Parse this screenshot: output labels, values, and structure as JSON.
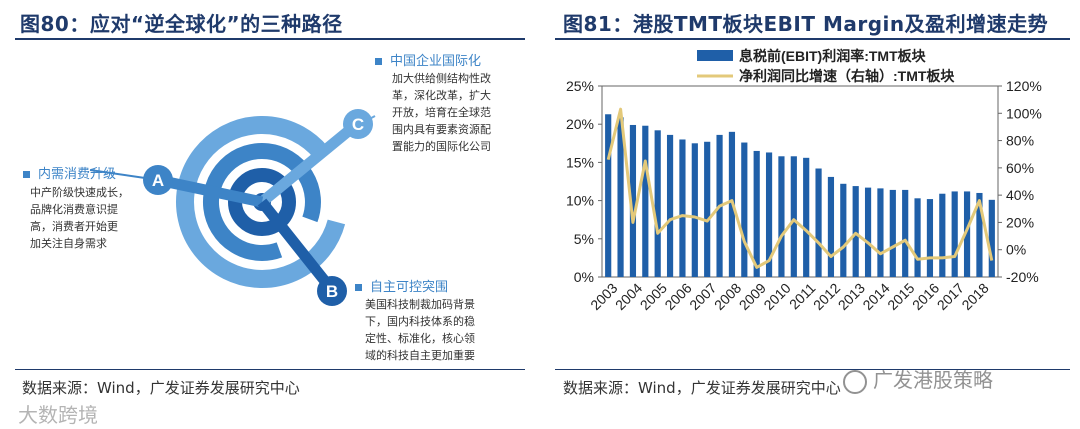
{
  "left": {
    "title": "图80：应对“逆全球化”的三种路径",
    "source": "数据来源：Wind，广发证券发展研究中心",
    "markers": [
      "A",
      "B",
      "C"
    ],
    "paths": [
      {
        "title": "中国企业国际化",
        "body": "加大供给侧结构性改\n革，深化改革，扩大\n开放，培育在全球范\n围内具有要素资源配\n置能力的国际化公司"
      },
      {
        "title": "内需消费升级",
        "body": "中产阶级快速成长，\n品牌化消费意识提\n高，消费者开始更\n加关注自身需求"
      },
      {
        "title": "自主可控突围",
        "body": "美国科技制裁加码背景\n下，国内科技体系的稳\n定性、标准化，核心领\n域的科技自主更加重要"
      }
    ],
    "colors": {
      "dark": "#1f5fa8",
      "mid": "#3d84c7",
      "light": "#6aa8de"
    }
  },
  "right": {
    "title": "图81：港股TMT板块EBIT Margin及盈利增速走势",
    "source": "数据来源：Wind，广发证券发展研究中心",
    "watermark": "广发港股策略"
  },
  "watermark_left": "大数跨境",
  "chart_data": {
    "type": "bar+line",
    "legend": [
      "息税前(EBIT)利润率:TMT板块",
      "净利润同比增速（右轴）:TMT板块"
    ],
    "categories": [
      "2003",
      "2004",
      "2005",
      "2006",
      "2007",
      "2008",
      "2009",
      "2010",
      "2011",
      "2012",
      "2013",
      "2014",
      "2015",
      "2016",
      "2017",
      "2018"
    ],
    "y_ticks": [
      "0%",
      "5%",
      "10%",
      "15%",
      "20%",
      "25%"
    ],
    "y2_ticks": [
      "-20%",
      "0%",
      "20%",
      "40%",
      "60%",
      "80%",
      "100%",
      "120%"
    ],
    "ylim": [
      0,
      25
    ],
    "y2lim": [
      -20,
      120
    ],
    "bar_series": {
      "name": "息税前(EBIT)利润率:TMT板块",
      "color": "#1f5fa8",
      "values": [
        21.3,
        20.9,
        19.9,
        19.8,
        19.2,
        18.6,
        18.0,
        17.5,
        17.7,
        18.6,
        19.0,
        17.6,
        16.5,
        16.3,
        15.8,
        15.8,
        15.6,
        14.2,
        13.1,
        12.2,
        11.9,
        11.7,
        11.6,
        11.4,
        11.4,
        10.3,
        10.2,
        10.9,
        11.2,
        11.2,
        11.0,
        10.1
      ]
    },
    "line_series": {
      "name": "净利润同比增速（右轴）:TMT板块",
      "color": "#e3c97a",
      "values": [
        66,
        103,
        20,
        65,
        12,
        22,
        25,
        24,
        21,
        32,
        36,
        6,
        -13,
        -8,
        10,
        22,
        14,
        5,
        -5,
        2,
        12,
        5,
        -3,
        2,
        7,
        -7,
        -6,
        -6,
        -5,
        15,
        36,
        -8
      ]
    }
  }
}
